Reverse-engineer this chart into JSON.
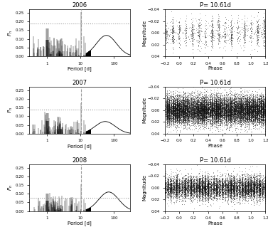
{
  "years": [
    "2006",
    "2007",
    "2008"
  ],
  "period_label": "P= 10.61d",
  "period_value": 10.61,
  "fap_levels": [
    0.19,
    0.14,
    0.075
  ],
  "ylim_pgram": [
    0.0,
    0.27
  ],
  "xlim_pgram": [
    0.3,
    300
  ],
  "xlim_phase": [
    -0.2,
    1.2
  ],
  "ylim_phase_lo": 0.04,
  "ylim_phase_hi": -0.04,
  "pgram_yticks": [
    0.0,
    0.05,
    0.1,
    0.15,
    0.2,
    0.25
  ],
  "dotted_color": "#999999",
  "dashed_color": "#999999",
  "scatter_color": "#111111",
  "scatter_size": 0.4,
  "scatter_alpha": 0.35,
  "n_cols_row0": 11,
  "n_cols_row1": 35,
  "n_cols_row2": 25,
  "pts_per_col_row0": 80,
  "pts_per_col_row1": 350,
  "pts_per_col_row2": 250
}
